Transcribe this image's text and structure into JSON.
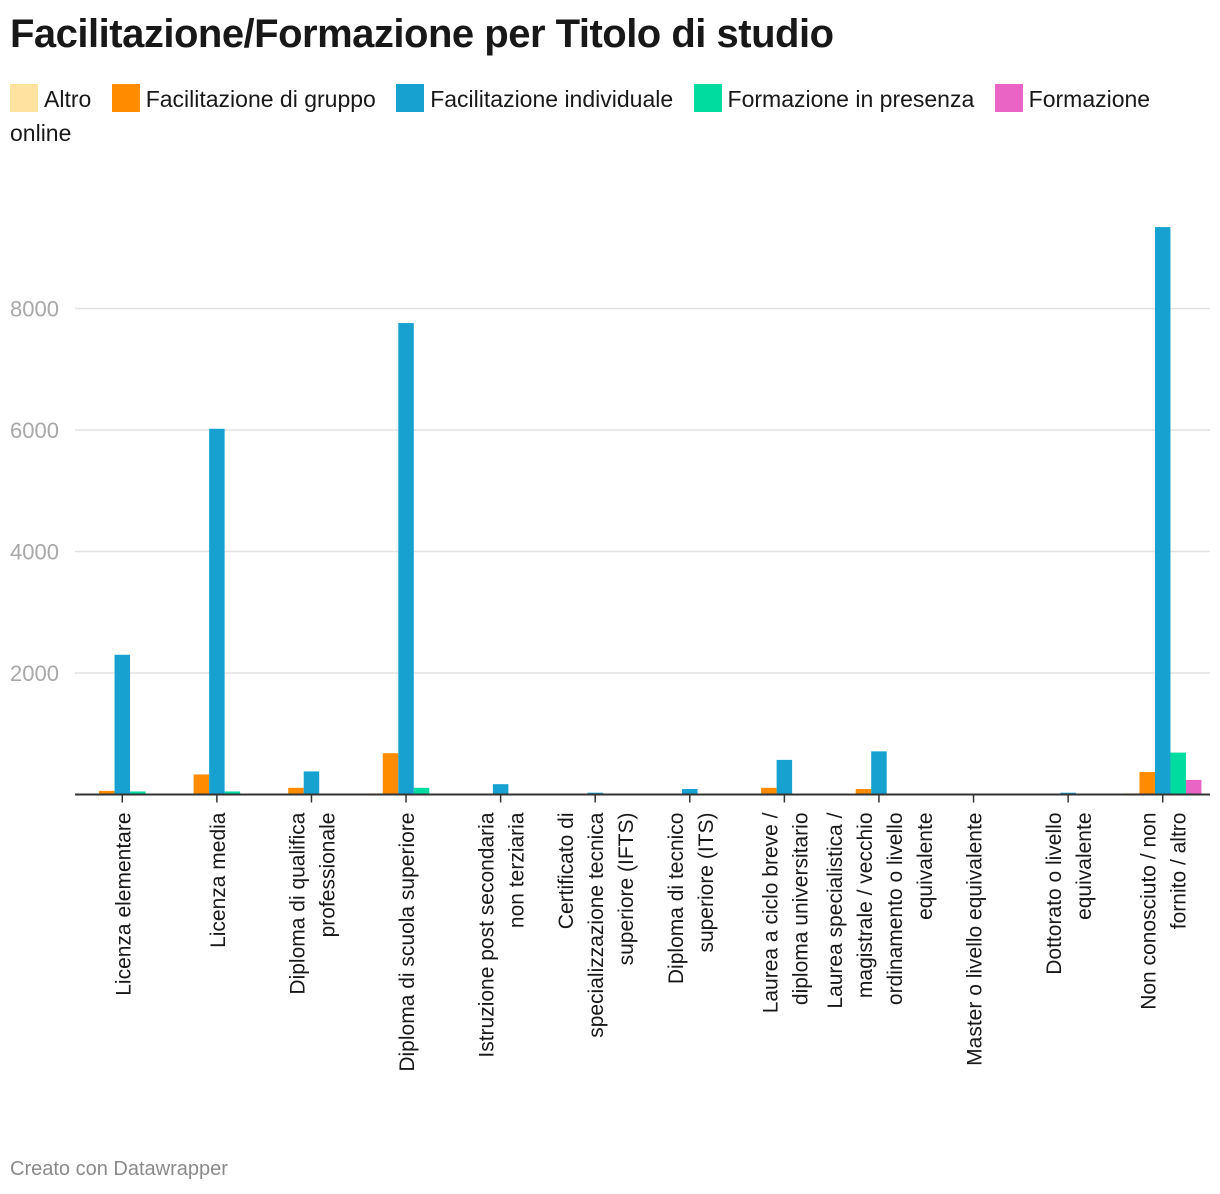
{
  "title": "Facilitazione/Formazione per Titolo di studio",
  "footer": "Creato con Datawrapper",
  "chart_data": {
    "type": "bar",
    "title": "Facilitazione/Formazione per Titolo di studio",
    "xlabel": "",
    "ylabel": "",
    "ylim": [
      0,
      9500
    ],
    "yticks": [
      2000,
      4000,
      6000,
      8000
    ],
    "grid": true,
    "legend_position": "top",
    "categories": [
      [
        "Licenza elementare"
      ],
      [
        "Licenza media"
      ],
      [
        "Diploma di qualifica",
        "professionale"
      ],
      [
        "Diploma di scuola superiore"
      ],
      [
        "Istruzione post secondaria",
        "non terziaria"
      ],
      [
        "Certificato di",
        "specializzazione tecnica",
        "superiore (IFTS)"
      ],
      [
        "Diploma di tecnico",
        "superiore (ITS)"
      ],
      [
        "Laurea a ciclo breve /",
        "diploma universitario"
      ],
      [
        "Laurea specialistica /",
        "magistrale / vecchio",
        "ordinamento o livello",
        "equivalente"
      ],
      [
        "Master o livello equivalente"
      ],
      [
        "Dottorato o livello",
        "equivalente"
      ],
      [
        "Non conosciuto / non",
        "fornito / altro"
      ]
    ],
    "series": [
      {
        "name": "Altro",
        "color": "#ffe29f",
        "values": [
          0,
          0,
          0,
          20,
          0,
          0,
          0,
          0,
          0,
          0,
          0,
          20
        ]
      },
      {
        "name": "Facilitazione di gruppo",
        "color": "#ff8c00",
        "values": [
          60,
          330,
          110,
          680,
          0,
          0,
          0,
          110,
          90,
          0,
          0,
          370
        ]
      },
      {
        "name": "Facilitazione individuale",
        "color": "#17a1d0",
        "values": [
          2300,
          6020,
          380,
          7760,
          170,
          30,
          90,
          570,
          710,
          10,
          30,
          9340
        ]
      },
      {
        "name": "Formazione in presenza",
        "color": "#00dca0",
        "values": [
          50,
          50,
          0,
          110,
          0,
          0,
          0,
          0,
          0,
          0,
          0,
          690
        ]
      },
      {
        "name": "Formazione online",
        "color": "#e964c4",
        "values": [
          0,
          0,
          0,
          0,
          0,
          0,
          0,
          0,
          0,
          0,
          0,
          240
        ]
      }
    ]
  }
}
